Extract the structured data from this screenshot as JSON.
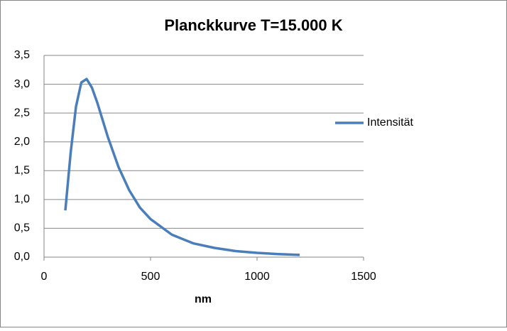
{
  "chart_data": {
    "type": "line",
    "title": "Planckkurve T=15.000 K",
    "x_label": "nm",
    "series": [
      {
        "name": "Intensität",
        "color": "#4a7ebb",
        "x": [
          100,
          125,
          150,
          175,
          200,
          225,
          250,
          300,
          350,
          400,
          450,
          500,
          600,
          700,
          800,
          900,
          1000,
          1100,
          1200
        ],
        "values": [
          0.81,
          1.81,
          2.61,
          3.03,
          3.09,
          2.94,
          2.68,
          2.08,
          1.56,
          1.16,
          0.86,
          0.66,
          0.39,
          0.24,
          0.16,
          0.105,
          0.074,
          0.053,
          0.039
        ]
      }
    ],
    "xlim": [
      0,
      1500
    ],
    "xticks": [
      0,
      500,
      1000,
      1500
    ],
    "ylim": [
      0,
      3.5
    ],
    "yticks": [
      {
        "value": 0,
        "label": "0,0"
      },
      {
        "value": 0.5,
        "label": "0,5"
      },
      {
        "value": 1,
        "label": "1,0"
      },
      {
        "value": 1.5,
        "label": "1,5"
      },
      {
        "value": 2,
        "label": "2,0"
      },
      {
        "value": 2.5,
        "label": "2,5"
      },
      {
        "value": 3,
        "label": "3,0"
      },
      {
        "value": 3.5,
        "label": "3,5"
      }
    ],
    "grid": true,
    "legend": "right"
  }
}
